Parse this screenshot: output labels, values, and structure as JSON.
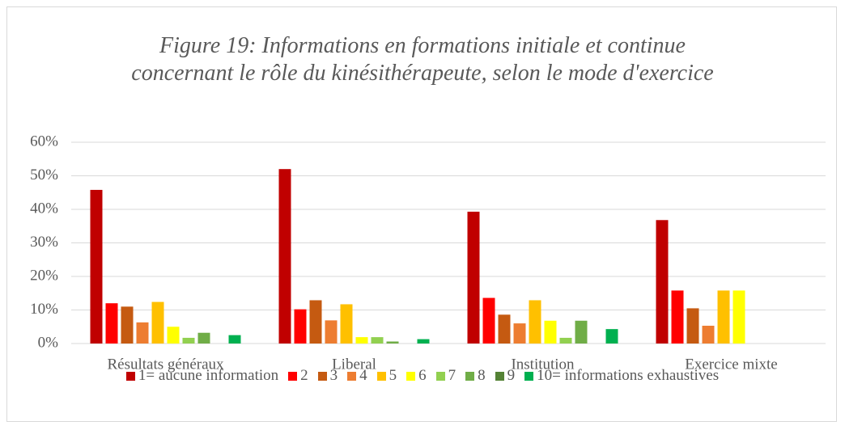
{
  "chart_data": {
    "type": "bar",
    "title": "Figure 19: Informations en formations initiale et continue concernant le rôle du kinésithérapeute, selon le mode d'exercice",
    "categories": [
      "Résultats généraux",
      "Liberal",
      "Institution",
      "Exercice mixte"
    ],
    "series": [
      {
        "name": "1= aucune information",
        "color": "#c00000",
        "values": [
          45.8,
          52,
          39.3,
          36.8
        ]
      },
      {
        "name": "2",
        "color": "#ff0000",
        "values": [
          12,
          10.2,
          13.6,
          15.8
        ]
      },
      {
        "name": "3",
        "color": "#c55a11",
        "values": [
          11,
          12.9,
          8.6,
          10.5
        ]
      },
      {
        "name": "4",
        "color": "#ed7d31",
        "values": [
          6.3,
          6.9,
          6,
          5.3
        ]
      },
      {
        "name": "5",
        "color": "#ffc000",
        "values": [
          12.4,
          11.7,
          12.9,
          15.8
        ]
      },
      {
        "name": "6",
        "color": "#ffff00",
        "values": [
          5,
          1.9,
          6.8,
          15.8
        ]
      },
      {
        "name": "7",
        "color": "#92d050",
        "values": [
          1.7,
          1.9,
          1.7,
          0
        ]
      },
      {
        "name": "8",
        "color": "#70ad47",
        "values": [
          3.2,
          0.6,
          6.8,
          0
        ]
      },
      {
        "name": "9",
        "color": "#548235",
        "values": [
          0,
          0,
          0,
          0
        ]
      },
      {
        "name": "10= informations exhaustives",
        "color": "#00b050",
        "values": [
          2.5,
          1.3,
          4.3,
          0
        ]
      }
    ],
    "ylim": [
      0,
      60
    ],
    "yticks": [
      {
        "value": 0,
        "label": "0%"
      },
      {
        "value": 10,
        "label": "10%"
      },
      {
        "value": 20,
        "label": "20%"
      },
      {
        "value": 30,
        "label": "30%"
      },
      {
        "value": 40,
        "label": "40%"
      },
      {
        "value": 50,
        "label": "50%"
      },
      {
        "value": 60,
        "label": "60%"
      }
    ],
    "grid": true,
    "legend": "bottom"
  }
}
